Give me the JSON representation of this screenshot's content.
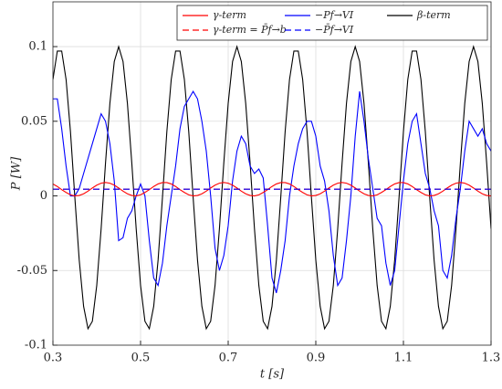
{
  "chart_data": {
    "type": "line",
    "x_label": "t [s]",
    "y_label": "P [W]",
    "xlim": [
      0.3,
      1.3
    ],
    "ylim": [
      -0.1,
      0.13
    ],
    "xticks": [
      0.3,
      0.5,
      0.7,
      0.9,
      1.1,
      1.3
    ],
    "yticks": [
      -0.1,
      -0.05,
      0,
      0.05,
      0.1
    ],
    "grid": true,
    "legend": "upper right",
    "x": [
      0.3,
      0.31,
      0.32,
      0.33,
      0.34,
      0.35,
      0.36,
      0.37,
      0.38,
      0.39,
      0.4,
      0.41,
      0.42,
      0.43,
      0.44,
      0.45,
      0.46,
      0.47,
      0.48,
      0.49,
      0.5,
      0.51,
      0.52,
      0.53,
      0.54,
      0.55,
      0.56,
      0.57,
      0.58,
      0.59,
      0.6,
      0.61,
      0.62,
      0.63,
      0.64,
      0.65,
      0.66,
      0.67,
      0.68,
      0.69,
      0.7,
      0.71,
      0.72,
      0.73,
      0.74,
      0.75,
      0.76,
      0.77,
      0.78,
      0.79,
      0.8,
      0.81,
      0.82,
      0.83,
      0.84,
      0.85,
      0.86,
      0.87,
      0.88,
      0.89,
      0.9,
      0.91,
      0.92,
      0.93,
      0.94,
      0.95,
      0.96,
      0.97,
      0.98,
      0.99,
      1.0,
      1.01,
      1.02,
      1.03,
      1.04,
      1.05,
      1.06,
      1.07,
      1.08,
      1.09,
      1.1,
      1.11,
      1.12,
      1.13,
      1.14,
      1.15,
      1.16,
      1.17,
      1.18,
      1.19,
      1.2,
      1.21,
      1.22,
      1.23,
      1.24,
      1.25,
      1.26,
      1.27,
      1.28,
      1.29,
      1.3
    ],
    "series": [
      {
        "name": "γ-term",
        "color": "#ff0000",
        "dash": false,
        "values": [
          0.008,
          0.0063,
          0.0042,
          0.0023,
          0.0007,
          0,
          0.0003,
          0.0014,
          0.0032,
          0.0053,
          0.0072,
          0.0085,
          0.009,
          0.0085,
          0.0072,
          0.0053,
          0.0032,
          0.0014,
          0.0003,
          0,
          0.0007,
          0.0023,
          0.0042,
          0.0063,
          0.008,
          0.0089,
          0.0089,
          0.008,
          0.0063,
          0.0042,
          0.0023,
          0.0007,
          0,
          0.0003,
          0.0014,
          0.0032,
          0.0053,
          0.0072,
          0.0085,
          0.009,
          0.0085,
          0.0072,
          0.0053,
          0.0032,
          0.0014,
          0.0003,
          0,
          0.0007,
          0.0023,
          0.0042,
          0.0063,
          0.008,
          0.0089,
          0.0089,
          0.008,
          0.0063,
          0.0042,
          0.0023,
          0.0007,
          0,
          0.0003,
          0.0014,
          0.0032,
          0.0053,
          0.0072,
          0.0085,
          0.009,
          0.0085,
          0.0072,
          0.0053,
          0.0032,
          0.0014,
          0.0003,
          0,
          0.0007,
          0.0023,
          0.0042,
          0.0063,
          0.008,
          0.0089,
          0.0089,
          0.008,
          0.0063,
          0.0042,
          0.0023,
          0.0007,
          0,
          0.0003,
          0.0014,
          0.0032,
          0.0053,
          0.0072,
          0.0085,
          0.009,
          0.0085,
          0.0072,
          0.0053,
          0.0032,
          0.0014,
          0.0003,
          0
        ]
      },
      {
        "name": "γ-term = P̄f→b",
        "color": "#ff0000",
        "dash": true,
        "x": [
          0.3,
          1.3
        ],
        "values": [
          0.0045,
          0.0045
        ]
      },
      {
        "name": "−Pf→VI",
        "color": "#0000ff",
        "dash": false,
        "values": [
          0.065,
          0.065,
          0.045,
          0.02,
          0,
          0,
          0.005,
          0.015,
          0.025,
          0.035,
          0.045,
          0.055,
          0.05,
          0.035,
          0.01,
          -0.03,
          -0.028,
          -0.015,
          -0.01,
          0,
          0.008,
          0,
          -0.03,
          -0.055,
          -0.06,
          -0.045,
          -0.02,
          0,
          0.02,
          0.045,
          0.06,
          0.065,
          0.07,
          0.065,
          0.05,
          0.03,
          0,
          -0.035,
          -0.05,
          -0.04,
          -0.02,
          0.01,
          0.03,
          0.04,
          0.035,
          0.02,
          0.015,
          0.018,
          0.012,
          -0.02,
          -0.055,
          -0.065,
          -0.05,
          -0.03,
          0,
          0.02,
          0.035,
          0.045,
          0.05,
          0.05,
          0.04,
          0.02,
          0.01,
          -0.01,
          -0.04,
          -0.06,
          -0.055,
          -0.03,
          0,
          0.04,
          0.07,
          0.05,
          0.025,
          0.005,
          -0.015,
          -0.02,
          -0.045,
          -0.06,
          -0.05,
          -0.02,
          0.01,
          0.035,
          0.05,
          0.055,
          0.035,
          0.015,
          0.005,
          -0.01,
          -0.02,
          -0.05,
          -0.055,
          -0.04,
          -0.015,
          0.005,
          0.03,
          0.05,
          0.045,
          0.04,
          0.045,
          0.035,
          0.03
        ]
      },
      {
        "name": "−P̄f→VI",
        "color": "#0000ff",
        "dash": true,
        "x": [
          0.3,
          1.3
        ],
        "values": [
          0.0045,
          0.0045
        ]
      },
      {
        "name": "β-term",
        "color": "#000000",
        "dash": false,
        "values": [
          0.078,
          0.097,
          0.097,
          0.078,
          0.043,
          -0.001,
          -0.043,
          -0.074,
          -0.089,
          -0.084,
          -0.06,
          -0.022,
          0.022,
          0.062,
          0.09,
          0.1,
          0.09,
          0.062,
          0.022,
          -0.022,
          -0.06,
          -0.084,
          -0.089,
          -0.074,
          -0.043,
          -0.001,
          0.043,
          0.078,
          0.097,
          0.097,
          0.078,
          0.043,
          -0.001,
          -0.043,
          -0.074,
          -0.089,
          -0.084,
          -0.06,
          -0.022,
          0.022,
          0.062,
          0.09,
          0.1,
          0.09,
          0.062,
          0.022,
          -0.022,
          -0.06,
          -0.084,
          -0.089,
          -0.074,
          -0.043,
          -0.001,
          0.043,
          0.078,
          0.097,
          0.097,
          0.078,
          0.043,
          -0.001,
          -0.043,
          -0.074,
          -0.089,
          -0.084,
          -0.06,
          -0.022,
          0.022,
          0.062,
          0.09,
          0.1,
          0.09,
          0.062,
          0.022,
          -0.022,
          -0.06,
          -0.084,
          -0.089,
          -0.074,
          -0.043,
          -0.001,
          0.043,
          0.078,
          0.097,
          0.097,
          0.078,
          0.043,
          -0.001,
          -0.043,
          -0.074,
          -0.089,
          -0.084,
          -0.06,
          -0.022,
          0.022,
          0.062,
          0.09,
          0.1,
          0.09,
          0.062,
          0.022,
          -0.022
        ]
      }
    ]
  }
}
